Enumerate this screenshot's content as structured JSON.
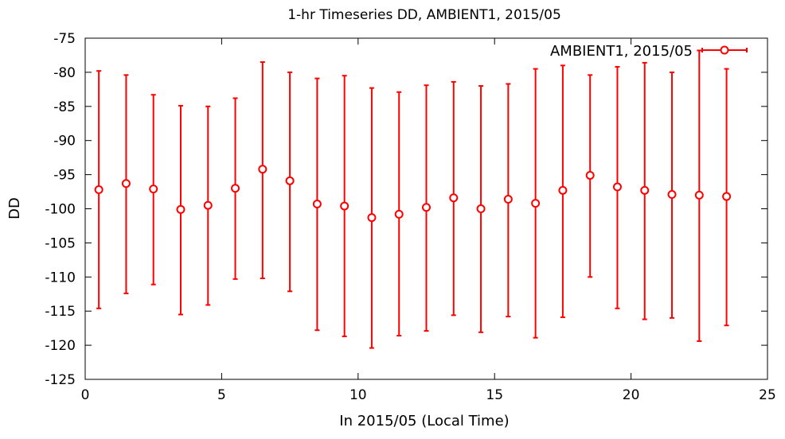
{
  "chart_data": {
    "type": "scatter",
    "title": "1-hr Timeseries DD, AMBIENT1, 2015/05",
    "xlabel": "In 2015/05 (Local Time)",
    "ylabel": "DD",
    "xlim": [
      0,
      25
    ],
    "ylim": [
      -125,
      -75
    ],
    "xticks": [
      "0",
      "5",
      "10",
      "15",
      "20",
      "25"
    ],
    "yticks": [
      "-75",
      "-80",
      "-85",
      "-90",
      "-95",
      "-100",
      "-105",
      "-110",
      "-115",
      "-120",
      "-125"
    ],
    "grid": false,
    "legend_position": "top-right",
    "color": "#ff0000",
    "series": [
      {
        "name": "AMBIENT1, 2015/05",
        "x": [
          0.5,
          1.5,
          2.5,
          3.5,
          4.5,
          5.5,
          6.5,
          7.5,
          8.5,
          9.5,
          10.5,
          11.5,
          12.5,
          13.5,
          14.5,
          15.5,
          16.5,
          17.5,
          18.5,
          19.5,
          20.5,
          21.5,
          22.5,
          23.5
        ],
        "y": [
          -97.2,
          -96.3,
          -97.1,
          -100.1,
          -99.5,
          -97.0,
          -94.2,
          -95.9,
          -99.3,
          -99.6,
          -101.3,
          -100.8,
          -99.8,
          -98.4,
          -100.0,
          -98.6,
          -99.2,
          -97.3,
          -95.1,
          -96.8,
          -97.3,
          -97.9,
          -98.0,
          -98.2
        ],
        "y_high": [
          -79.8,
          -80.4,
          -83.3,
          -84.9,
          -85.0,
          -83.8,
          -78.5,
          -80.0,
          -80.9,
          -80.5,
          -82.3,
          -82.9,
          -81.9,
          -81.4,
          -82.0,
          -81.7,
          -79.5,
          -79.0,
          -80.4,
          -79.2,
          -78.6,
          -80.0,
          -76.8,
          -79.5
        ],
        "y_low": [
          -114.6,
          -112.4,
          -111.1,
          -115.5,
          -114.1,
          -110.3,
          -110.2,
          -112.1,
          -117.8,
          -118.7,
          -120.4,
          -118.6,
          -117.9,
          -115.6,
          -118.1,
          -115.8,
          -118.9,
          -115.9,
          -110.0,
          -114.6,
          -116.2,
          -116.0,
          -119.4,
          -117.1
        ]
      }
    ]
  }
}
